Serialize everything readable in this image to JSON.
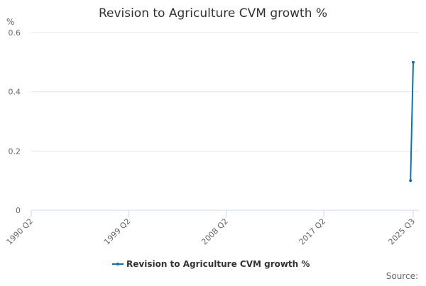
{
  "chart_data": {
    "type": "line",
    "title": "Revision to Agriculture CVM growth %",
    "y_label": "%",
    "source": "Source:",
    "categories": [
      "1990 Q2",
      null,
      null,
      null,
      null,
      null,
      null,
      null,
      null,
      null,
      null,
      null,
      null,
      null,
      null,
      null,
      null,
      null,
      null,
      null,
      null,
      null,
      null,
      null,
      null,
      null,
      null,
      null,
      null,
      null,
      null,
      null,
      null,
      null,
      null,
      null,
      "1999 Q2",
      null,
      null,
      null,
      null,
      null,
      null,
      null,
      null,
      null,
      null,
      null,
      null,
      null,
      null,
      null,
      null,
      null,
      null,
      null,
      null,
      null,
      null,
      null,
      null,
      null,
      null,
      null,
      null,
      null,
      null,
      null,
      null,
      null,
      null,
      null,
      "2008 Q2",
      null,
      null,
      null,
      null,
      null,
      null,
      null,
      null,
      null,
      null,
      null,
      null,
      null,
      null,
      null,
      null,
      null,
      null,
      null,
      null,
      null,
      null,
      null,
      null,
      null,
      null,
      null,
      null,
      null,
      null,
      null,
      null,
      null,
      null,
      null,
      "2017 Q2",
      null,
      null,
      null,
      null,
      null,
      null,
      null,
      null,
      null,
      null,
      null,
      null,
      null,
      null,
      null,
      null,
      null,
      null,
      null,
      null,
      null,
      null,
      null,
      null,
      null,
      null,
      null,
      null,
      null,
      null,
      null,
      null,
      "2025 Q3"
    ],
    "series": [
      {
        "name": "Revision to Agriculture CVM growth %",
        "color": "#0b72b5",
        "values": [
          null,
          null,
          null,
          null,
          null,
          null,
          null,
          null,
          null,
          null,
          null,
          null,
          null,
          null,
          null,
          null,
          null,
          null,
          null,
          null,
          null,
          null,
          null,
          null,
          null,
          null,
          null,
          null,
          null,
          null,
          null,
          null,
          null,
          null,
          null,
          null,
          null,
          null,
          null,
          null,
          null,
          null,
          null,
          null,
          null,
          null,
          null,
          null,
          null,
          null,
          null,
          null,
          null,
          null,
          null,
          null,
          null,
          null,
          null,
          null,
          null,
          null,
          null,
          null,
          null,
          null,
          null,
          null,
          null,
          null,
          null,
          null,
          null,
          null,
          null,
          null,
          null,
          null,
          null,
          null,
          null,
          null,
          null,
          null,
          null,
          null,
          null,
          null,
          null,
          null,
          null,
          null,
          null,
          null,
          null,
          null,
          null,
          null,
          null,
          null,
          null,
          null,
          null,
          null,
          null,
          null,
          null,
          null,
          null,
          null,
          null,
          null,
          null,
          null,
          null,
          null,
          null,
          null,
          null,
          null,
          null,
          null,
          null,
          null,
          null,
          null,
          null,
          null,
          null,
          null,
          null,
          null,
          null,
          null,
          null,
          null,
          null,
          null,
          null,
          null,
          0.1,
          0.5
        ]
      }
    ],
    "ylim": [
      0,
      0.6
    ],
    "yticks": [
      0,
      0.2,
      0.4,
      0.6
    ],
    "grid": true,
    "legend": "bottom"
  }
}
